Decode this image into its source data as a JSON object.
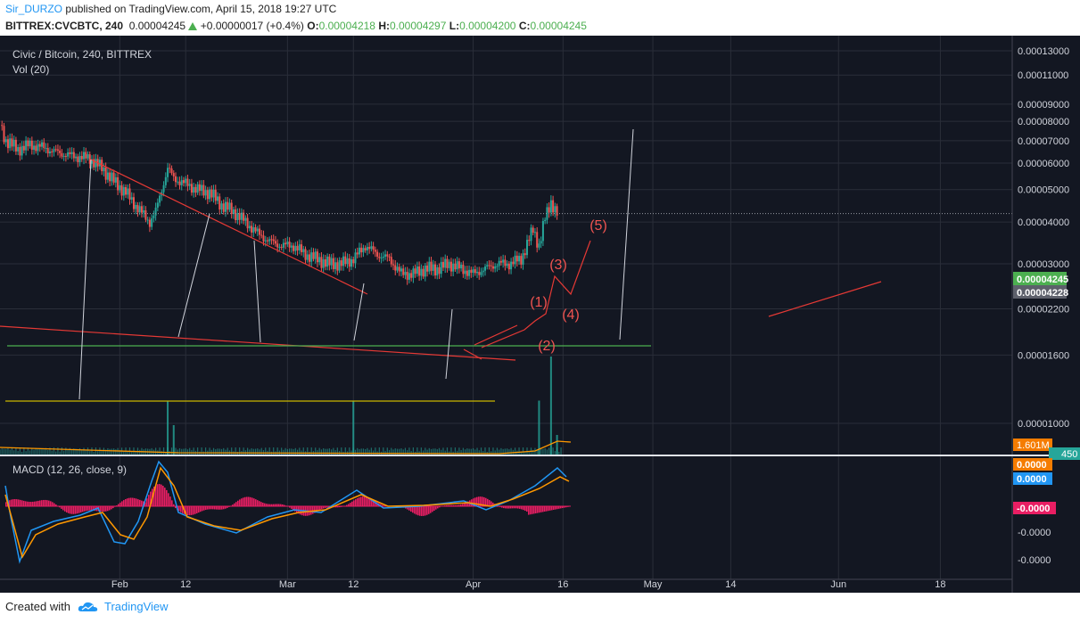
{
  "header": {
    "author": "Sir_DURZO",
    "published_text": "published on TradingView.com, April 15, 2018 19:27 UTC",
    "symbol": "BITTREX:CVCBTC, 240",
    "last": "0.00004245",
    "change": "+0.00000017 (+0.4%)",
    "o_label": "O:",
    "o": "0.00004218",
    "h_label": "H:",
    "h": "0.00004297",
    "l_label": "L:",
    "l": "0.00004200",
    "c_label": "C:",
    "c": "0.00004245"
  },
  "footer": {
    "created_with": "Created with",
    "brand": "TradingView"
  },
  "colors": {
    "background": "#131722",
    "grid": "#2a2e39",
    "up": "#26a69a",
    "down": "#ef5350",
    "trendline": "#e53935",
    "support": "#4caf50",
    "yellow_line": "#c9b600",
    "drawn_lines": "#d1d4dc",
    "macd_line": "#2196f3",
    "signal_line": "#ff9800",
    "histogram": "#e91e63"
  },
  "chart_data": {
    "type": "candlestick",
    "title": "Civic / Bitcoin, 240, BITTREX",
    "volume_label": "Vol (20)",
    "macd_label": "MACD (12, 26, close, 9)",
    "y_tick_labels": [
      "0.00013000",
      "0.00011000",
      "0.00009000",
      "0.00008000",
      "0.00007000",
      "0.00006000",
      "0.00005000",
      "0.00004000",
      "0.00003000",
      "0.00002200",
      "0.00001600",
      "0.00001000"
    ],
    "y_ticks": [
      0.00013,
      0.00011,
      9e-05,
      8e-05,
      7e-05,
      6e-05,
      5e-05,
      4e-05,
      3e-05,
      2.2e-05,
      1.6e-05,
      1e-05
    ],
    "y_scale": "log",
    "x_tick_labels": [
      "Feb",
      "12",
      "Mar",
      "12",
      "Apr",
      "16",
      "May",
      "14",
      "Jun",
      "18"
    ],
    "x_ticks": [
      "2018-02-01",
      "2018-02-12",
      "2018-03-01",
      "2018-03-12",
      "2018-04-01",
      "2018-04-16",
      "2018-05-01",
      "2018-05-14",
      "2018-06-01",
      "2018-06-18"
    ],
    "x_range": [
      "2018-01-12",
      "2018-06-30"
    ],
    "price_badges": [
      {
        "value": "0.00004245",
        "color": "#4caf50"
      },
      {
        "value": "0.00004228",
        "color": "#5d606b"
      }
    ],
    "volume_badges": [
      {
        "value": "1.601M",
        "color": "#f57c00"
      },
      {
        "value": "450",
        "color": "#26a69a"
      }
    ],
    "macd_badges": [
      {
        "value": "0.0000",
        "color": "#f57c00"
      },
      {
        "value": "0.0000",
        "color": "#2196f3"
      },
      {
        "value": "-0.0000",
        "color": "#e91e63"
      }
    ],
    "macd_tick_labels": [
      "-0.0000",
      "-0.0000"
    ],
    "close_path": [
      [
        "2018-01-12",
        7.8e-05
      ],
      [
        "2018-01-13",
        7e-05
      ],
      [
        "2018-01-15",
        6.6e-05
      ],
      [
        "2018-01-17",
        6.8e-05
      ],
      [
        "2018-01-19",
        6.7e-05
      ],
      [
        "2018-01-21",
        6.5e-05
      ],
      [
        "2018-01-24",
        6.3e-05
      ],
      [
        "2018-01-27",
        6.2e-05
      ],
      [
        "2018-01-29",
        5.8e-05
      ],
      [
        "2018-01-31",
        5.3e-05
      ],
      [
        "2018-02-02",
        4.9e-05
      ],
      [
        "2018-02-04",
        4.4e-05
      ],
      [
        "2018-02-06",
        4e-05
      ],
      [
        "2018-02-07",
        4.3e-05
      ],
      [
        "2018-02-09",
        5.8e-05
      ],
      [
        "2018-02-10",
        5.4e-05
      ],
      [
        "2018-02-12",
        5.2e-05
      ],
      [
        "2018-02-14",
        5e-05
      ],
      [
        "2018-02-16",
        4.9e-05
      ],
      [
        "2018-02-18",
        4.5e-05
      ],
      [
        "2018-02-20",
        4.3e-05
      ],
      [
        "2018-02-22",
        4e-05
      ],
      [
        "2018-02-24",
        3.7e-05
      ],
      [
        "2018-02-26",
        3.5e-05
      ],
      [
        "2018-02-28",
        3.4e-05
      ],
      [
        "2018-03-02",
        3.4e-05
      ],
      [
        "2018-03-04",
        3.2e-05
      ],
      [
        "2018-03-06",
        3.1e-05
      ],
      [
        "2018-03-08",
        3e-05
      ],
      [
        "2018-03-10",
        3e-05
      ],
      [
        "2018-03-12",
        3.1e-05
      ],
      [
        "2018-03-14",
        3.4e-05
      ],
      [
        "2018-03-16",
        3.2e-05
      ],
      [
        "2018-03-18",
        3.1e-05
      ],
      [
        "2018-03-20",
        2.8e-05
      ],
      [
        "2018-03-22",
        2.8e-05
      ],
      [
        "2018-03-24",
        2.9e-05
      ],
      [
        "2018-03-26",
        2.9e-05
      ],
      [
        "2018-03-28",
        3e-05
      ],
      [
        "2018-03-30",
        2.9e-05
      ],
      [
        "2018-04-01",
        2.8e-05
      ],
      [
        "2018-04-03",
        2.9e-05
      ],
      [
        "2018-04-05",
        3e-05
      ],
      [
        "2018-04-07",
        3e-05
      ],
      [
        "2018-04-09",
        3.1e-05
      ],
      [
        "2018-04-11",
        3.8e-05
      ],
      [
        "2018-04-12",
        3.4e-05
      ],
      [
        "2018-04-13",
        4.1e-05
      ],
      [
        "2018-04-14",
        4.6e-05
      ],
      [
        "2018-04-15",
        4.24e-05
      ]
    ],
    "volume_spikes": [
      [
        "2018-02-09",
        0.55
      ],
      [
        "2018-02-10",
        0.3
      ],
      [
        "2018-03-12",
        0.55
      ],
      [
        "2018-04-12",
        0.55
      ],
      [
        "2018-04-14",
        1.0
      ],
      [
        "2018-04-15",
        0.2
      ]
    ],
    "wave_labels": [
      "(1)",
      "(2)",
      "(3)",
      "(4)",
      "(5)"
    ]
  }
}
